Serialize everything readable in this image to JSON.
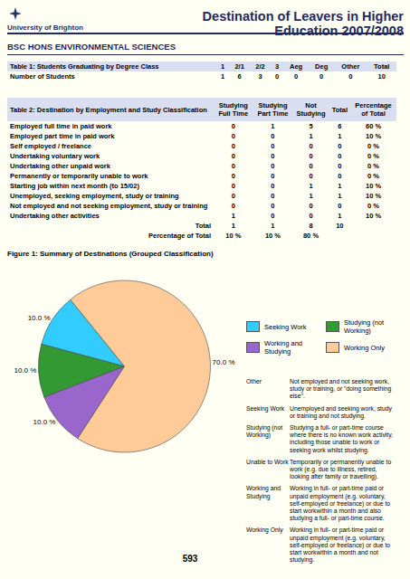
{
  "header": {
    "logo": "University of Brighton",
    "title": "Destination of Leavers in Higher Education 2007/2008",
    "section": "BSC HONS ENVIRONMENTAL SCIENCES"
  },
  "table1": {
    "header": [
      "Table 1: Students Graduating by Degree Class",
      "1",
      "2/1",
      "2/2",
      "3",
      "Aeg",
      "Deg",
      "Other",
      "Total"
    ],
    "rows": [
      [
        "Number of Students",
        1,
        6,
        3,
        0,
        0,
        0,
        0,
        10
      ]
    ]
  },
  "table2": {
    "header": [
      "Table 2: Destination by Employment and Study Classification",
      "Studying Full Time",
      "Studying Part Time",
      "Not Studying",
      "Total",
      "Percentage of Total"
    ],
    "rows": [
      [
        "Employed full time in paid work",
        0,
        1,
        5,
        6,
        "60 %"
      ],
      [
        "Employed part time in paid work",
        0,
        0,
        1,
        1,
        "10 %"
      ],
      [
        "Self employed / freelance",
        0,
        0,
        0,
        0,
        "0 %"
      ],
      [
        "Undertaking voluntary work",
        0,
        0,
        0,
        0,
        "0 %"
      ],
      [
        "Undertaking other unpaid work",
        0,
        0,
        0,
        0,
        "0 %"
      ],
      [
        "Permanently or temporarily unable to work",
        0,
        0,
        0,
        0,
        "0 %"
      ],
      [
        "Starting job within next month (to 15/02)",
        0,
        0,
        1,
        1,
        "10 %"
      ],
      [
        "Unemployed, seeking employment, study or training",
        0,
        0,
        1,
        1,
        "10 %"
      ],
      [
        "Not employed and not seeking employment, study or training",
        0,
        0,
        0,
        0,
        "0 %"
      ],
      [
        "Undertaking other activities",
        1,
        0,
        0,
        1,
        "10 %"
      ]
    ],
    "total_row": [
      "Total",
      1,
      1,
      8,
      10
    ],
    "percentage_row": [
      "Percentage of Total",
      "10 %",
      "10 %",
      "80 %"
    ]
  },
  "chart_data": {
    "type": "pie",
    "title": "Figure 1: Summary of Destinations (Grouped Classification)",
    "categories": [
      "Seeking Work",
      "Studying (not Working)",
      "Working and Studying",
      "Working Only"
    ],
    "values": [
      10,
      10,
      10,
      70
    ],
    "value_labels": [
      "10.0 %",
      "10.0 %",
      "10.0 %",
      "70.0 %"
    ],
    "colors": [
      "#33ccff",
      "#339933",
      "#9966cc",
      "#ffcc99"
    ],
    "data_labels": true
  },
  "definitions": [
    {
      "term": "Other",
      "text": "Not employed and not seeking work, study or training, or \"doing something else\"."
    },
    {
      "term": "Seeking Work",
      "text": "Unemployed and seeking work, study or training and not studying."
    },
    {
      "term": "Studying (not Working)",
      "text": "Studying a full- or part-time course where there is no known work activity, including those unable to work or seeking work whilst studying."
    },
    {
      "term": "Unable to Work",
      "text": "Temporarily or permanently unable to work (e.g. due to illness, retired, looking after family or travelling)."
    },
    {
      "term": "Working and Studying",
      "text": "Working in full- or part-time paid or unpaid employment (e.g. voluntary, self-employed or freelance) or due to start workwithin a month and also studying a full- or part-time course."
    },
    {
      "term": "Working Only",
      "text": "Working in full- or part-time paid or unpaid employment (e.g. voluntary, self-employed or freelance) or due to start workwithin a month and not studying."
    }
  ],
  "page_number": "593"
}
